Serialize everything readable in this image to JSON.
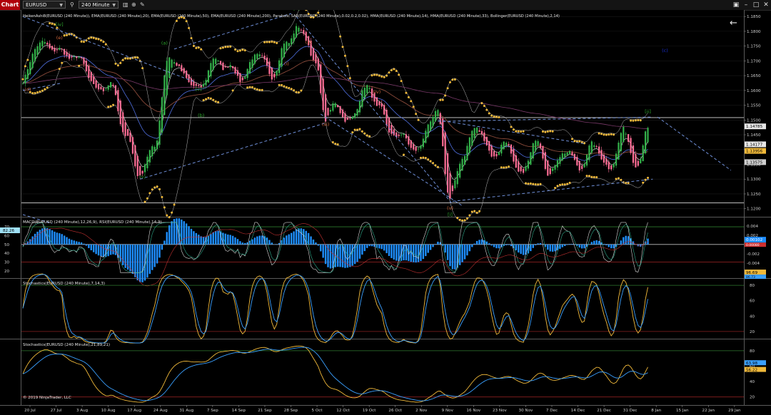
{
  "toolbar": {
    "chart_tab": "Chart",
    "instrument": "EURUSD",
    "interval": "240 Minute"
  },
  "panels": {
    "price": {
      "indicators_label": "HeikenAshi8(EURUSD (240 Minute)), EMA(EURUSD (240 Minute),20), EMA(EURUSD (240 Minute),50), EMA(EURUSD (240 Minute),200), Parabolic SAR(EURUSD (240 Minute),0.02,0.2,0.02), HMA(EURUSD (240 Minute),14), HMA(EURUSD (240 Minute),33), Bollinger(EURUSD (240 Minute),2,14)",
      "axis_labels": [
        "1.1850",
        "1.1800",
        "1.1750",
        "1.1700",
        "1.1650",
        "1.1600",
        "1.1550",
        "1.1500",
        "1.1450",
        "1.1400",
        "1.1350",
        "1.1300",
        "1.1250",
        "1.1200"
      ],
      "price_tags": [
        {
          "label": "1.14785",
          "value": 1.14785,
          "color": "#e6e6e6"
        },
        {
          "label": "1.14177",
          "value": 1.14177,
          "color": "#e6e6e6"
        },
        {
          "label": "1.13956",
          "value": 1.13956,
          "color": "#f0b93a"
        },
        {
          "label": "1.13575",
          "value": 1.13575,
          "color": "#cfcfcf"
        }
      ],
      "wave_labels": [
        {
          "text": "[iv]",
          "color": "#2da82d",
          "i": 15,
          "v": 1.1818
        },
        {
          "text": "(e)",
          "color": "#d0663a",
          "i": 15,
          "v": 1.1773
        },
        {
          "text": "(d)",
          "color": "#d0663a",
          "i": 2,
          "v": 1.1598
        },
        {
          "text": "(a)",
          "color": "#2da82d",
          "i": 58,
          "v": 1.1755
        },
        {
          "text": "[v]",
          "color": "#2da82d",
          "i": 72,
          "v": 1.16
        },
        {
          "text": "(b)",
          "color": "#2da82d",
          "i": 73,
          "v": 1.151
        },
        {
          "text": "[c]",
          "color": "#2da82d",
          "i": 112,
          "v": 1.1872
        },
        {
          "text": "(i)",
          "color": "#d0663a",
          "i": 108,
          "v": 1.1685
        },
        {
          "text": "(ii)",
          "color": "#d0663a",
          "i": 117,
          "v": 1.1757
        },
        {
          "text": "(iii)",
          "color": "#d0663a",
          "i": 124,
          "v": 1.148
        },
        {
          "text": "(iv)",
          "color": "#d0663a",
          "i": 145,
          "v": 1.159
        },
        {
          "text": "(v)",
          "color": "#d0663a",
          "i": 175,
          "v": 1.1197
        },
        {
          "text": "[i]",
          "color": "#2da82d",
          "i": 175,
          "v": 1.1175
        },
        {
          "text": "[ii]",
          "color": "#2da82d",
          "i": 256,
          "v": 1.1524
        },
        {
          "text": "(c)",
          "color": "#1a2fd0",
          "i": 263,
          "v": 1.173
        },
        {
          "text": "(v)",
          "color": "#2da82d",
          "i": 49,
          "v": 1.1303
        }
      ]
    },
    "macd": {
      "label": "MACD(EURUSD (240 Minute),12,26,9), RSI(EURUSD (240 Minute),14,3)",
      "left_axis": [
        "70",
        "60",
        "50",
        "40",
        "30",
        "20"
      ],
      "right_axis": [
        "0.004",
        "0.002",
        "0",
        "-0.002",
        "-0.004"
      ],
      "left_tag": "82.26",
      "right_tags": [
        "0.00102",
        "0.00080"
      ]
    },
    "stoch1": {
      "label": "Stochastics(EURUSD (240 Minute),7,14,3)",
      "axis": [
        "80",
        "60",
        "40",
        "20"
      ],
      "tags": [
        "96.69",
        "86.73"
      ]
    },
    "stoch2": {
      "label": "Stochastics(EURUSD (240 Minute),21,89,21)",
      "axis": [
        "80",
        "60",
        "40",
        "20"
      ],
      "tags": [
        "63.98",
        "56.22"
      ],
      "copyright": "© 2019 NinjaTrader, LLC"
    }
  },
  "x_axis_labels": [
    "20 Jul",
    "27 Jul",
    "3 Aug",
    "10 Aug",
    "17 Aug",
    "24 Aug",
    "31 Aug",
    "7 Sep",
    "14 Sep",
    "21 Sep",
    "28 Sep",
    "5 Oct",
    "12 Oct",
    "19 Oct",
    "26 Oct",
    "2 Nov",
    "9 Nov",
    "16 Nov",
    "23 Nov",
    "30 Nov",
    "7 Dec",
    "14 Dec",
    "21 Dec",
    "31 Dec",
    "8 Jan",
    "15 Jan",
    "22 Jan",
    "29 Jan"
  ],
  "colors": {
    "background": "#000000",
    "bull_candle": "#33b24a",
    "bear_candle": "#ff6e96",
    "psar": "#f0b93a",
    "trendline": "#6f8fd8",
    "macd_hist": "#1e8fff",
    "stoch_k": "#f0b93a",
    "stoch_d": "#3aa0ff"
  },
  "chart_data": {
    "type": "candlestick",
    "title": "EURUSD 240 Minute",
    "x_range": [
      "20 Jul",
      "29 Jan"
    ],
    "y_range": [
      1.118,
      1.186
    ],
    "waypoints": [
      [
        0,
        1.163
      ],
      [
        6,
        1.176
      ],
      [
        12,
        1.1745
      ],
      [
        18,
        1.172
      ],
      [
        24,
        1.17
      ],
      [
        30,
        1.16
      ],
      [
        36,
        1.162
      ],
      [
        42,
        1.145
      ],
      [
        48,
        1.1315
      ],
      [
        54,
        1.142
      ],
      [
        60,
        1.172
      ],
      [
        66,
        1.165
      ],
      [
        72,
        1.16
      ],
      [
        78,
        1.17
      ],
      [
        84,
        1.168
      ],
      [
        90,
        1.164
      ],
      [
        96,
        1.173
      ],
      [
        102,
        1.165
      ],
      [
        108,
        1.176
      ],
      [
        112,
        1.181
      ],
      [
        116,
        1.178
      ],
      [
        120,
        1.168
      ],
      [
        124,
        1.151
      ],
      [
        128,
        1.155
      ],
      [
        134,
        1.149
      ],
      [
        140,
        1.161
      ],
      [
        146,
        1.155
      ],
      [
        150,
        1.146
      ],
      [
        156,
        1.144
      ],
      [
        162,
        1.139
      ],
      [
        166,
        1.149
      ],
      [
        170,
        1.152
      ],
      [
        175,
        1.123
      ],
      [
        180,
        1.138
      ],
      [
        186,
        1.148
      ],
      [
        192,
        1.138
      ],
      [
        198,
        1.142
      ],
      [
        204,
        1.131
      ],
      [
        210,
        1.143
      ],
      [
        216,
        1.132
      ],
      [
        222,
        1.14
      ],
      [
        228,
        1.134
      ],
      [
        234,
        1.142
      ],
      [
        240,
        1.133
      ],
      [
        246,
        1.146
      ],
      [
        252,
        1.134
      ],
      [
        256,
        1.148
      ]
    ],
    "horizontal_lines": [
      1.1508,
      1.122
    ],
    "trendlines": [
      {
        "from": [
          0,
          1.185
        ],
        "to": [
          70,
          1.163
        ]
      },
      {
        "from": [
          0,
          1.16
        ],
        "to": [
          16,
          1.1625
        ]
      },
      {
        "from": [
          0,
          1.118
        ],
        "to": [
          12,
          1.115
        ]
      },
      {
        "from": [
          62,
          1.174
        ],
        "to": [
          110,
          1.186
        ]
      },
      {
        "from": [
          48,
          1.13
        ],
        "to": [
          124,
          1.149
        ]
      },
      {
        "from": [
          112,
          1.185
        ],
        "to": [
          176,
          1.1215
        ]
      },
      {
        "from": [
          122,
          1.152
        ],
        "to": [
          180,
          1.121
        ]
      },
      {
        "from": [
          176,
          1.1225
        ],
        "to": [
          258,
          1.13
        ]
      },
      {
        "from": [
          170,
          1.1495
        ],
        "to": [
          258,
          1.151
        ]
      },
      {
        "from": [
          170,
          1.15
        ],
        "to": [
          230,
          1.142
        ]
      },
      {
        "from": [
          260,
          1.151
        ],
        "to": [
          290,
          1.133
        ]
      }
    ]
  }
}
